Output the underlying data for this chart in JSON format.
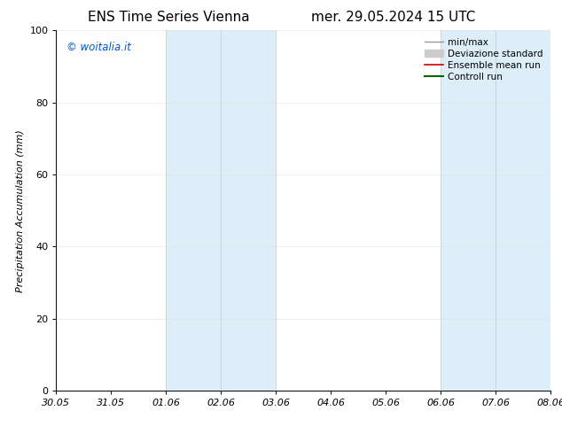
{
  "title_left": "ENS Time Series Vienna",
  "title_right": "mer. 29.05.2024 15 UTC",
  "ylabel": "Precipitation Accumulation (mm)",
  "xlabel": "",
  "ylim": [
    0,
    100
  ],
  "yticks": [
    0,
    20,
    40,
    60,
    80,
    100
  ],
  "xtick_labels": [
    "30.05",
    "31.05",
    "01.06",
    "02.06",
    "03.06",
    "04.06",
    "05.06",
    "06.06",
    "07.06",
    "08.06"
  ],
  "xtick_positions": [
    0,
    1,
    2,
    3,
    4,
    5,
    6,
    7,
    8,
    9
  ],
  "shaded_bands": [
    {
      "x_start": 2,
      "x_end": 4,
      "color": "#ddeef9"
    },
    {
      "x_start": 7,
      "x_end": 9,
      "color": "#ddeef9"
    }
  ],
  "band_dividers": [
    2,
    3,
    4,
    7,
    8,
    9
  ],
  "watermark_text": "© woitalia.it",
  "watermark_color": "#0055cc",
  "legend_entries": [
    {
      "label": "min/max",
      "color": "#999999",
      "linewidth": 1.0,
      "style": "line"
    },
    {
      "label": "Deviazione standard",
      "color": "#cccccc",
      "linewidth": 7,
      "style": "band"
    },
    {
      "label": "Ensemble mean run",
      "color": "#cc0000",
      "linewidth": 1.2,
      "style": "line"
    },
    {
      "label": "Controll run",
      "color": "#006600",
      "linewidth": 1.5,
      "style": "line"
    }
  ],
  "background_color": "#ffffff",
  "title_fontsize": 11,
  "tick_fontsize": 8,
  "ylabel_fontsize": 8,
  "legend_fontsize": 7.5
}
